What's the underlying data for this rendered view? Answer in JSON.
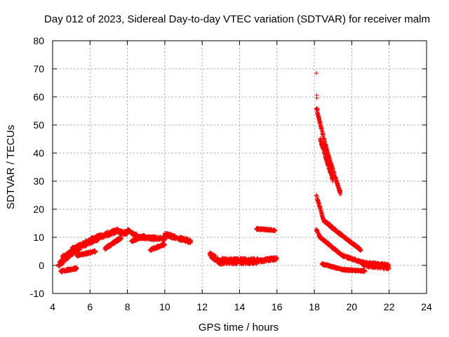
{
  "chart_data": {
    "type": "scatter",
    "title": "Day 012 of 2023, Sidereal Day-to-day VTEC variation (SDTVAR) for receiver malm",
    "xlabel": "GPS time / hours",
    "ylabel": "SDTVAR / TECUs",
    "xlim": [
      4,
      24
    ],
    "ylim": [
      -10,
      80
    ],
    "xticks": [
      4,
      6,
      8,
      10,
      12,
      14,
      16,
      18,
      20,
      22,
      24
    ],
    "yticks": [
      -10,
      0,
      10,
      20,
      30,
      40,
      50,
      60,
      70,
      80
    ],
    "grid": true,
    "marker": "+",
    "colors": {
      "points": "#ff0000",
      "grid": "#a0a0a0",
      "axes": "#000000"
    },
    "series": [
      {
        "name": "SDTVAR",
        "bands": [
          {
            "x0": 4.3,
            "x1": 5.0,
            "y0": 0,
            "y1": 4.5,
            "width": 2.0
          },
          {
            "x0": 4.5,
            "x1": 5.5,
            "y0": 2.5,
            "y1": 6.5,
            "width": 2.0
          },
          {
            "x0": 5.0,
            "x1": 6.5,
            "y0": 5.5,
            "y1": 10.0,
            "width": 2.0
          },
          {
            "x0": 6.0,
            "x1": 7.5,
            "y0": 9.0,
            "y1": 12.5,
            "width": 1.6
          },
          {
            "x0": 7.5,
            "x1": 8.0,
            "y0": 12.0,
            "y1": 11.5,
            "width": 1.2
          },
          {
            "x0": 5.3,
            "x1": 6.3,
            "y0": 3.5,
            "y1": 5.0,
            "width": 0.8
          },
          {
            "x0": 6.8,
            "x1": 7.7,
            "y0": 6.0,
            "y1": 10.0,
            "width": 1.0
          },
          {
            "x0": 4.4,
            "x1": 5.3,
            "y0": -2.2,
            "y1": -1.0,
            "width": 0.8
          },
          {
            "x0": 8.0,
            "x1": 8.5,
            "y0": 12.5,
            "y1": 10.5,
            "width": 1.2
          },
          {
            "x0": 8.5,
            "x1": 10.0,
            "y0": 10.0,
            "y1": 9.5,
            "width": 1.2
          },
          {
            "x0": 8.2,
            "x1": 8.9,
            "y0": 8.5,
            "y1": 10.5,
            "width": 0.8
          },
          {
            "x0": 9.2,
            "x1": 10.0,
            "y0": 5.5,
            "y1": 7.5,
            "width": 0.8
          },
          {
            "x0": 10.0,
            "x1": 11.4,
            "y0": 11.0,
            "y1": 8.5,
            "width": 1.4
          },
          {
            "x0": 12.4,
            "x1": 13.0,
            "y0": 4.0,
            "y1": 1.0,
            "width": 2.0
          },
          {
            "x0": 13.0,
            "x1": 15.0,
            "y0": 1.5,
            "y1": 1.5,
            "width": 2.2
          },
          {
            "x0": 15.0,
            "x1": 16.0,
            "y0": 1.5,
            "y1": 2.5,
            "width": 1.2
          },
          {
            "x0": 14.9,
            "x1": 15.9,
            "y0": 13.0,
            "y1": 12.5,
            "width": 0.6
          },
          {
            "x0": 18.1,
            "x1": 18.7,
            "y0": 56.0,
            "y1": 40.0,
            "width": 1.0
          },
          {
            "x0": 18.7,
            "x1": 19.4,
            "y0": 40.0,
            "y1": 25.5,
            "width": 1.0
          },
          {
            "x0": 18.1,
            "x1": 18.15,
            "y0": 71.0,
            "y1": 55.0,
            "width": 0.5
          },
          {
            "x0": 18.3,
            "x1": 19.0,
            "y0": 45.0,
            "y1": 30.0,
            "width": 0.8
          },
          {
            "x0": 18.1,
            "x1": 18.5,
            "y0": 25.0,
            "y1": 16.0,
            "width": 0.8
          },
          {
            "x0": 18.5,
            "x1": 19.5,
            "y0": 16.0,
            "y1": 10.5,
            "width": 1.0
          },
          {
            "x0": 19.5,
            "x1": 20.5,
            "y0": 10.5,
            "y1": 5.5,
            "width": 0.8
          },
          {
            "x0": 18.1,
            "x1": 18.3,
            "y0": 13.0,
            "y1": 10.0,
            "width": 0.8
          },
          {
            "x0": 18.3,
            "x1": 19.5,
            "y0": 10.0,
            "y1": 3.5,
            "width": 0.8
          },
          {
            "x0": 19.5,
            "x1": 20.8,
            "y0": 3.5,
            "y1": 0.5,
            "width": 0.8
          },
          {
            "x0": 18.4,
            "x1": 19.5,
            "y0": 0.5,
            "y1": -1.5,
            "width": 0.6
          },
          {
            "x0": 19.5,
            "x1": 20.7,
            "y0": -1.5,
            "y1": -2.0,
            "width": 0.6
          },
          {
            "x0": 20.6,
            "x1": 22.0,
            "y0": 0.5,
            "y1": -0.5,
            "width": 2.0
          }
        ]
      }
    ]
  }
}
